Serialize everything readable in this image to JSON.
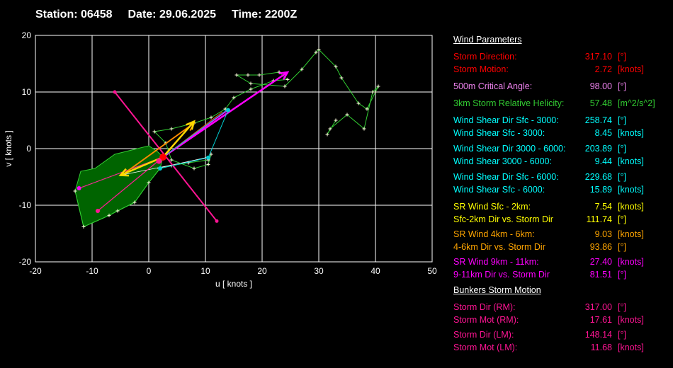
{
  "header": {
    "station": "Station: 06458",
    "date": "Date: 29.06.2025",
    "time": "Time: 2200Z"
  },
  "chart_data": {
    "type": "hodograph",
    "xlabel": "u  [ knots ]",
    "ylabel": "v  [ knots ]",
    "xlim": [
      -20,
      50
    ],
    "ylim": [
      -20,
      20
    ],
    "xticks": [
      "-20",
      "-10",
      "0",
      "10",
      "20",
      "30",
      "40",
      "50"
    ],
    "yticks": [
      "20",
      "10",
      "0",
      "-10",
      "-20"
    ],
    "xtick_values": [
      -20,
      -10,
      0,
      10,
      20,
      30,
      40,
      50
    ],
    "ytick_values": [
      20,
      10,
      0,
      -10,
      -20
    ],
    "grid": true,
    "hodograph_line": {
      "color": "#32cd32",
      "points": [
        [
          -13,
          -7.5
        ],
        [
          -11.5,
          -13.8
        ],
        [
          -7,
          -11.8
        ],
        [
          -5.5,
          -11
        ],
        [
          -2.5,
          -9.5
        ],
        [
          0,
          -6
        ],
        [
          2,
          -3.5
        ],
        [
          4,
          -3
        ],
        [
          7,
          -2.5
        ],
        [
          10.5,
          -2
        ],
        [
          11,
          -1
        ],
        [
          10.5,
          -2.8
        ],
        [
          8,
          -3.5
        ],
        [
          4,
          -2
        ],
        [
          3,
          1
        ],
        [
          1,
          3
        ],
        [
          4,
          3.5
        ],
        [
          8,
          4.5
        ],
        [
          11,
          5.5
        ],
        [
          13.5,
          7
        ],
        [
          15,
          9
        ],
        [
          18,
          10.5
        ],
        [
          22,
          12
        ],
        [
          24.5,
          12.2
        ],
        [
          23,
          13.5
        ],
        [
          19.5,
          13
        ],
        [
          17.5,
          13
        ],
        [
          15.5,
          13
        ],
        [
          18,
          11.5
        ],
        [
          24,
          11
        ],
        [
          27,
          14
        ],
        [
          29.5,
          17
        ],
        [
          30,
          17.5
        ],
        [
          33,
          14.5
        ],
        [
          34,
          12.5
        ],
        [
          37,
          8
        ],
        [
          38.5,
          7
        ],
        [
          40,
          10
        ],
        [
          40.5,
          11
        ],
        [
          39.5,
          10
        ],
        [
          38,
          3.5
        ],
        [
          35,
          6
        ],
        [
          32,
          3.5
        ],
        [
          31.5,
          2.5
        ],
        [
          33,
          5
        ]
      ]
    },
    "shear_area": {
      "color": "#006400",
      "points": [
        [
          -13,
          -7.5
        ],
        [
          -12,
          -4
        ],
        [
          -9.5,
          -3.5
        ],
        [
          -6,
          -1
        ],
        [
          -2,
          0
        ],
        [
          0,
          0.5
        ],
        [
          1.5,
          -0.5
        ],
        [
          2.5,
          -1.5
        ],
        [
          2,
          -3.5
        ],
        [
          0,
          -6
        ],
        [
          -2.5,
          -9.5
        ],
        [
          -5.5,
          -11
        ],
        [
          -7,
          -11.8
        ],
        [
          -11.5,
          -13.8
        ]
      ]
    },
    "white_lines": [
      {
        "points": [
          [
            -12.3,
            -7
          ],
          [
            2.5,
            -1.5
          ]
        ]
      },
      {
        "points": [
          [
            -9,
            -11
          ],
          [
            2.5,
            -1.5
          ]
        ]
      },
      {
        "points": [
          [
            -5,
            -4.7
          ],
          [
            10.5,
            -1.6
          ]
        ]
      },
      {
        "points": [
          [
            1.5,
            -3.5
          ],
          [
            10.5,
            -1.5
          ]
        ]
      },
      {
        "points": [
          [
            2.5,
            -1.5
          ],
          [
            14,
            6.8
          ]
        ]
      }
    ],
    "vectors": [
      {
        "name": "",
        "color": "#ff1493",
        "from": [
          -6,
          10
        ],
        "to": [
          12,
          -12.8
        ],
        "width": 2,
        "arrow": false
      },
      {
        "name": "",
        "color": "#ff1493",
        "from": [
          -9,
          -11
        ],
        "to": [
          2.5,
          -1.5
        ],
        "width": 1.2,
        "arrow": false
      },
      {
        "name": "",
        "color": "#ff1493",
        "from": [
          -12.3,
          -7
        ],
        "to": [
          2.5,
          -1.5
        ],
        "width": 1,
        "arrow": false
      },
      {
        "name": "",
        "color": "#ff00ff",
        "from": [
          2.5,
          -1.5
        ],
        "to": [
          24.5,
          13.5
        ],
        "width": 2.5,
        "arrow": true
      },
      {
        "name": "",
        "color": "#ff00ff",
        "from": [
          2.5,
          -1.5
        ],
        "to": [
          14,
          6.8
        ],
        "width": 1.5,
        "arrow": false
      },
      {
        "name": "",
        "color": "#ff4500",
        "from": [
          2.5,
          -1.5
        ],
        "to": [
          13,
          6.5
        ],
        "width": 1,
        "arrow": false
      },
      {
        "name": "",
        "color": "#00ced1",
        "from": [
          2.5,
          -1.5
        ],
        "to": [
          14,
          7
        ],
        "width": 1,
        "arrow": false
      },
      {
        "name": "",
        "color": "#00ced1",
        "from": [
          2,
          -3.5
        ],
        "to": [
          10.5,
          -1.6
        ],
        "width": 1,
        "arrow": false
      },
      {
        "name": "",
        "color": "#00ced1",
        "from": [
          10.5,
          -1.6
        ],
        "to": [
          14,
          6.8
        ],
        "width": 1,
        "arrow": false
      },
      {
        "name": "",
        "color": "#ff8c00",
        "from": [
          -4.5,
          -4.5
        ],
        "to": [
          8,
          4.5
        ],
        "width": 2,
        "arrow": true
      },
      {
        "name": "",
        "color": "#ffd700",
        "from": [
          2.5,
          -1.5
        ],
        "to": [
          -5,
          -4.7
        ],
        "width": 2.5,
        "arrow": true
      },
      {
        "name": "",
        "color": "#ffd700",
        "from": [
          2.5,
          -1.5
        ],
        "to": [
          8,
          4.8
        ],
        "width": 2.5,
        "arrow": true
      }
    ],
    "markers": [
      {
        "name": "storm-motion",
        "color": "#ff0000",
        "x": 2.5,
        "y": -1.5,
        "size": 5
      },
      {
        "name": "",
        "color": "#ff1493",
        "x": 1.8,
        "y": -2.2,
        "size": 4
      },
      {
        "name": "",
        "color": "#ff00ff",
        "x": -12.3,
        "y": -7,
        "size": 3
      },
      {
        "name": "",
        "color": "#ff1493",
        "x": -9,
        "y": -11,
        "size": 3
      },
      {
        "name": "",
        "color": "#00ced1",
        "x": 10.5,
        "y": -1.6,
        "size": 3
      },
      {
        "name": "",
        "color": "#00ced1",
        "x": 14,
        "y": 6.8,
        "size": 3
      },
      {
        "name": "",
        "color": "#00ced1",
        "x": 2,
        "y": -3.5,
        "size": 3
      },
      {
        "name": "",
        "color": "#ff1493",
        "x": -6,
        "y": 10,
        "size": 2.5
      },
      {
        "name": "",
        "color": "#ff1493",
        "x": 12,
        "y": -12.8,
        "size": 2.5
      }
    ]
  },
  "panel": {
    "wind_params_title": "Wind Parameters",
    "rows": [
      {
        "label": "Storm Direction:",
        "value": "317.10",
        "unit": "[°]",
        "color": "#ff0000"
      },
      {
        "label": "Storm Motion:",
        "value": "2.72",
        "unit": "[knots]",
        "color": "#ff0000"
      },
      {
        "label": "500m Critical Angle:",
        "value": "98.00",
        "unit": "[°]",
        "color": "#ee82ee"
      },
      {
        "label": "3km Storm Relative Helicity:",
        "value": "57.48",
        "unit": "[m^2/s^2]",
        "color": "#32cd32"
      },
      {
        "label": "Wind Shear Dir Sfc - 3000:",
        "value": "258.74",
        "unit": "[°]",
        "color": "#00ffff"
      },
      {
        "label": "Wind Shear Sfc - 3000:",
        "value": "8.45",
        "unit": "[knots]",
        "color": "#00ffff"
      },
      {
        "label": "Wind Shear Dir 3000 - 6000:",
        "value": "203.89",
        "unit": "[°]",
        "color": "#00ffff"
      },
      {
        "label": "Wind Shear 3000 - 6000:",
        "value": "9.44",
        "unit": "[knots]",
        "color": "#00ffff"
      },
      {
        "label": "Wind Shear Dir Sfc - 6000:",
        "value": "229.68",
        "unit": "[°]",
        "color": "#00ffff"
      },
      {
        "label": "Wind Shear Sfc - 6000:",
        "value": "15.89",
        "unit": "[knots]",
        "color": "#00ffff"
      },
      {
        "label": "SR Wind Sfc - 2km:",
        "value": "7.54",
        "unit": "[knots]",
        "color": "#ffff00"
      },
      {
        "label": "Sfc-2km Dir vs. Storm Dir",
        "value": "111.74",
        "unit": "[°]",
        "color": "#ffff00"
      },
      {
        "label": "SR Wind 4km - 6km:",
        "value": "9.03",
        "unit": "[knots]",
        "color": "#ffa500"
      },
      {
        "label": "4-6km Dir vs. Storm Dir",
        "value": "93.86",
        "unit": "[°]",
        "color": "#ffa500"
      },
      {
        "label": "SR Wind 9km - 11km:",
        "value": "27.40",
        "unit": "[knots]",
        "color": "#ff00ff"
      },
      {
        "label": "9-11km Dir vs. Storm Dir",
        "value": "81.51",
        "unit": "[°]",
        "color": "#ff00ff"
      }
    ],
    "bunkers_title": "Bunkers Storm Motion",
    "bunkers_rows": [
      {
        "label": "Storm Dir (RM):",
        "value": "317.00",
        "unit": "[°]",
        "color": "#ff1493"
      },
      {
        "label": "Storm Mot (RM):",
        "value": "17.61",
        "unit": "[knots]",
        "color": "#ff1493"
      },
      {
        "label": "Storm Dir (LM):",
        "value": "148.14",
        "unit": "[°]",
        "color": "#ff1493"
      },
      {
        "label": "Storm Mot (LM):",
        "value": "11.68",
        "unit": "[knots]",
        "color": "#ff1493"
      }
    ]
  }
}
